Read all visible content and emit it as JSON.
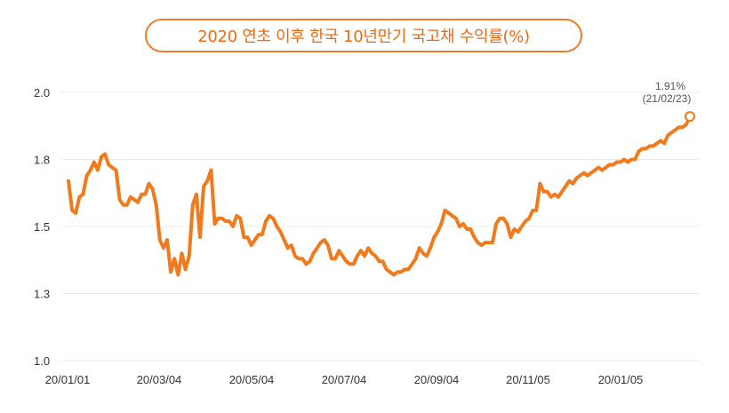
{
  "title": "2020 연초 이후 한국 10년만기 국고채 수익률(%)",
  "colors": {
    "line": "#f07a1c",
    "title_border": "#ee7a2b",
    "grid": "#ebebeb"
  },
  "chart_data": {
    "type": "line",
    "title": "2020 연초 이후 한국 10년만기 국고채 수익률(%)",
    "xlabel": "",
    "ylabel": "",
    "ylim": [
      1.0,
      2.0
    ],
    "y_ticks": [
      {
        "value": 1.0,
        "label": "1.0"
      },
      {
        "value": 1.25,
        "label": "1.3"
      },
      {
        "value": 1.5,
        "label": "1.5"
      },
      {
        "value": 1.75,
        "label": "1.8"
      },
      {
        "value": 2.0,
        "label": "2.0"
      }
    ],
    "x_tick_labels": [
      "20/01/01",
      "20/03/04",
      "20/05/04",
      "20/07/04",
      "20/09/04",
      "20/11/05",
      "20/01/05"
    ],
    "grid": "horizontal",
    "legend": "none",
    "annotation": {
      "value_label": "1.91%",
      "date_label": "(21/02/23)"
    },
    "series": [
      {
        "values": [
          1.67,
          1.56,
          1.55,
          1.61,
          1.62,
          1.69,
          1.71,
          1.74,
          1.71,
          1.76,
          1.77,
          1.73,
          1.72,
          1.71,
          1.6,
          1.58,
          1.58,
          1.61,
          1.6,
          1.59,
          1.62,
          1.62,
          1.66,
          1.64,
          1.58,
          1.45,
          1.42,
          1.45,
          1.33,
          1.38,
          1.32,
          1.4,
          1.34,
          1.39,
          1.58,
          1.62,
          1.46,
          1.65,
          1.67,
          1.71,
          1.51,
          1.53,
          1.53,
          1.52,
          1.52,
          1.5,
          1.54,
          1.53,
          1.46,
          1.46,
          1.43,
          1.45,
          1.47,
          1.47,
          1.52,
          1.54,
          1.53,
          1.5,
          1.48,
          1.45,
          1.42,
          1.43,
          1.39,
          1.38,
          1.38,
          1.36,
          1.37,
          1.4,
          1.42,
          1.44,
          1.45,
          1.43,
          1.38,
          1.38,
          1.41,
          1.39,
          1.37,
          1.36,
          1.36,
          1.39,
          1.41,
          1.39,
          1.42,
          1.4,
          1.39,
          1.37,
          1.37,
          1.34,
          1.33,
          1.32,
          1.33,
          1.33,
          1.34,
          1.34,
          1.36,
          1.38,
          1.42,
          1.4,
          1.39,
          1.42,
          1.46,
          1.48,
          1.51,
          1.56,
          1.55,
          1.54,
          1.53,
          1.5,
          1.51,
          1.49,
          1.49,
          1.46,
          1.44,
          1.43,
          1.44,
          1.44,
          1.44,
          1.51,
          1.53,
          1.53,
          1.51,
          1.46,
          1.49,
          1.48,
          1.5,
          1.52,
          1.53,
          1.56,
          1.56,
          1.66,
          1.63,
          1.63,
          1.61,
          1.62,
          1.61,
          1.63,
          1.65,
          1.67,
          1.66,
          1.68,
          1.69,
          1.7,
          1.69,
          1.7,
          1.71,
          1.72,
          1.71,
          1.72,
          1.73,
          1.73,
          1.74,
          1.74,
          1.75,
          1.74,
          1.75,
          1.75,
          1.78,
          1.79,
          1.79,
          1.8,
          1.8,
          1.81,
          1.82,
          1.81,
          1.84,
          1.85,
          1.86,
          1.87,
          1.87,
          1.88,
          1.91
        ]
      }
    ]
  }
}
